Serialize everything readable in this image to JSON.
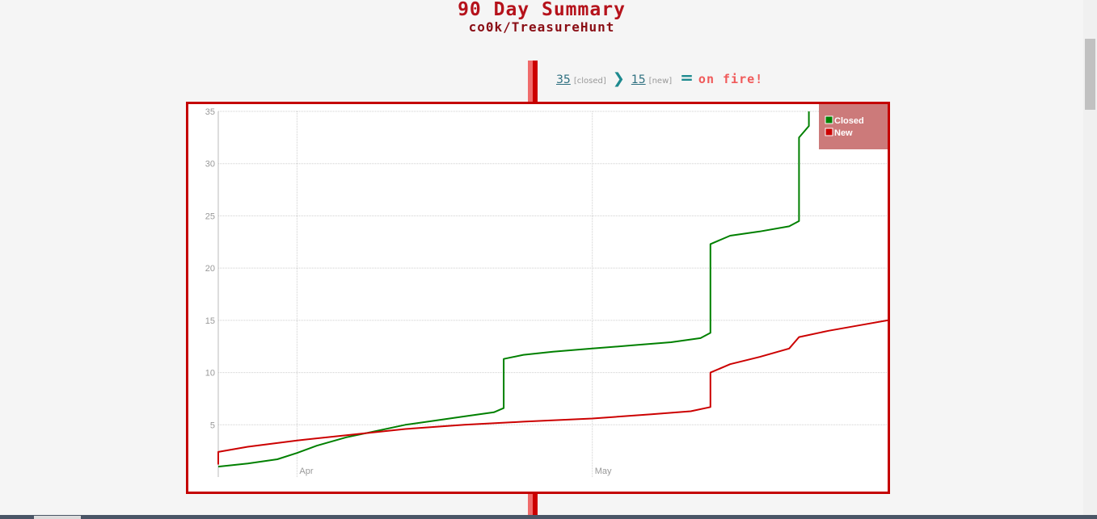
{
  "header": {
    "title": "90 Day Summary",
    "subtitle": "co0k/TreasureHunt"
  },
  "summary": {
    "closed_count": "35",
    "closed_label": "[closed]",
    "new_count": "15",
    "new_label": "[new]",
    "status_text": "on fire!"
  },
  "colors": {
    "closed": "#008000",
    "new": "#cc0000",
    "border": "#c40000",
    "legend_bg": "#cc7a7a"
  },
  "chart_data": {
    "type": "line",
    "title": "",
    "xlabel": "",
    "ylabel": "",
    "ylim": [
      0,
      35
    ],
    "y_ticks": [
      "5",
      "10",
      "15",
      "20",
      "25",
      "30",
      "35"
    ],
    "x_ticks": [
      "Apr",
      "May"
    ],
    "grid": true,
    "legend_position": "top-right",
    "series": [
      {
        "name": "Closed",
        "points": [
          [
            "2014-03-24",
            1.0
          ],
          [
            "2014-03-27",
            1.3
          ],
          [
            "2014-03-30",
            1.7
          ],
          [
            "2014-04-01",
            2.3
          ],
          [
            "2014-04-03",
            3.0
          ],
          [
            "2014-04-06",
            3.8
          ],
          [
            "2014-04-09",
            4.4
          ],
          [
            "2014-04-12",
            5.0
          ],
          [
            "2014-04-15",
            5.4
          ],
          [
            "2014-04-18",
            5.8
          ],
          [
            "2014-04-21",
            6.2
          ],
          [
            "2014-04-22",
            6.6
          ],
          [
            "2014-04-22",
            11.3
          ],
          [
            "2014-04-24",
            11.7
          ],
          [
            "2014-04-27",
            12.0
          ],
          [
            "2014-05-01",
            12.3
          ],
          [
            "2014-05-05",
            12.6
          ],
          [
            "2014-05-09",
            12.9
          ],
          [
            "2014-05-12",
            13.3
          ],
          [
            "2014-05-13",
            13.8
          ],
          [
            "2014-05-13",
            22.3
          ],
          [
            "2014-05-15",
            23.1
          ],
          [
            "2014-05-18",
            23.5
          ],
          [
            "2014-05-21",
            24.0
          ],
          [
            "2014-05-22",
            24.5
          ],
          [
            "2014-05-22",
            32.5
          ],
          [
            "2014-05-23",
            33.6
          ],
          [
            "2014-05-23",
            35.0
          ]
        ]
      },
      {
        "name": "New",
        "points": [
          [
            "2014-03-24",
            1.2
          ],
          [
            "2014-03-24",
            2.4
          ],
          [
            "2014-03-27",
            2.9
          ],
          [
            "2014-04-01",
            3.5
          ],
          [
            "2014-04-06",
            4.0
          ],
          [
            "2014-04-12",
            4.6
          ],
          [
            "2014-04-18",
            5.0
          ],
          [
            "2014-04-24",
            5.3
          ],
          [
            "2014-05-01",
            5.6
          ],
          [
            "2014-05-07",
            6.0
          ],
          [
            "2014-05-11",
            6.3
          ],
          [
            "2014-05-13",
            6.7
          ],
          [
            "2014-05-13",
            10.0
          ],
          [
            "2014-05-15",
            10.8
          ],
          [
            "2014-05-18",
            11.5
          ],
          [
            "2014-05-21",
            12.3
          ],
          [
            "2014-05-22",
            13.4
          ],
          [
            "2014-05-25",
            14.0
          ],
          [
            "2014-05-28",
            14.5
          ],
          [
            "2014-05-31",
            15.0
          ]
        ]
      }
    ]
  }
}
